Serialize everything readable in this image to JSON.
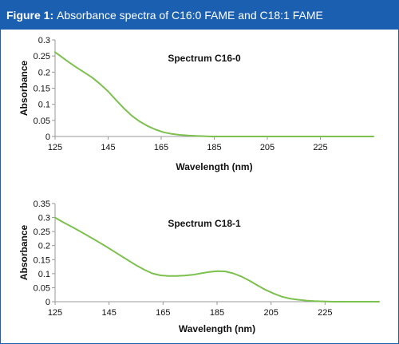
{
  "header": {
    "figure_label": "Figure 1:",
    "title": "Absorbance spectra of C16:0 FAME and C18:1 FAME"
  },
  "colors": {
    "header_bg": "#1b5fb1",
    "line": "#7cc04e",
    "axis": "#999999"
  },
  "chart_data": [
    {
      "type": "line",
      "title": "Spectrum C16-0",
      "xlabel": "Wavelength (nm)",
      "ylabel": "Absorbance",
      "xlim": [
        125,
        245
      ],
      "ylim": [
        0,
        0.3
      ],
      "xticks": [
        125,
        145,
        165,
        185,
        205,
        225
      ],
      "yticks": [
        0,
        0.05,
        0.1,
        0.15,
        0.2,
        0.25,
        0.3
      ],
      "ytick_labels": [
        "0",
        "0.05",
        "0.1",
        "0.15",
        "0.2",
        "0.25",
        "0.3"
      ],
      "grid": false,
      "series": [
        {
          "x": [
            125,
            127,
            130,
            133,
            136,
            139,
            142,
            145,
            148,
            151,
            154,
            157,
            160,
            163,
            166,
            169,
            172,
            175,
            178,
            181,
            184,
            187,
            190,
            195,
            200,
            210,
            220,
            230,
            240,
            245
          ],
          "values": [
            0.262,
            0.25,
            0.232,
            0.215,
            0.199,
            0.183,
            0.163,
            0.14,
            0.113,
            0.087,
            0.064,
            0.046,
            0.032,
            0.021,
            0.013,
            0.008,
            0.005,
            0.003,
            0.002,
            0.001,
            0.0,
            0.0,
            0.0,
            0.0,
            0.0,
            0.0,
            0.0,
            0.0,
            0.0,
            0.0
          ]
        }
      ]
    },
    {
      "type": "line",
      "title": "Spectrum C18-1",
      "xlabel": "Wavelength (nm)",
      "ylabel": "Absorbance",
      "xlim": [
        125,
        245
      ],
      "ylim": [
        0,
        0.35
      ],
      "xticks": [
        125,
        145,
        165,
        185,
        205,
        225
      ],
      "yticks": [
        0,
        0.05,
        0.1,
        0.15,
        0.2,
        0.25,
        0.3,
        0.35
      ],
      "ytick_labels": [
        "0",
        "0.05",
        "0.1",
        "0.15",
        "0.2",
        "0.25",
        "0.3",
        "0.35"
      ],
      "grid": false,
      "series": [
        {
          "x": [
            125,
            128,
            131,
            134,
            137,
            140,
            143,
            146,
            149,
            152,
            155,
            158,
            161,
            164,
            167,
            170,
            173,
            176,
            179,
            182,
            185,
            188,
            191,
            194,
            197,
            200,
            203,
            206,
            209,
            212,
            215,
            218,
            221,
            224,
            228,
            232,
            236,
            240,
            245
          ],
          "values": [
            0.3,
            0.283,
            0.268,
            0.252,
            0.236,
            0.219,
            0.202,
            0.184,
            0.166,
            0.148,
            0.13,
            0.114,
            0.101,
            0.094,
            0.092,
            0.092,
            0.093,
            0.096,
            0.101,
            0.106,
            0.109,
            0.108,
            0.101,
            0.09,
            0.075,
            0.058,
            0.042,
            0.029,
            0.018,
            0.011,
            0.007,
            0.004,
            0.002,
            0.001,
            0.0,
            0.0,
            0.0,
            0.0,
            0.0
          ]
        }
      ]
    }
  ]
}
